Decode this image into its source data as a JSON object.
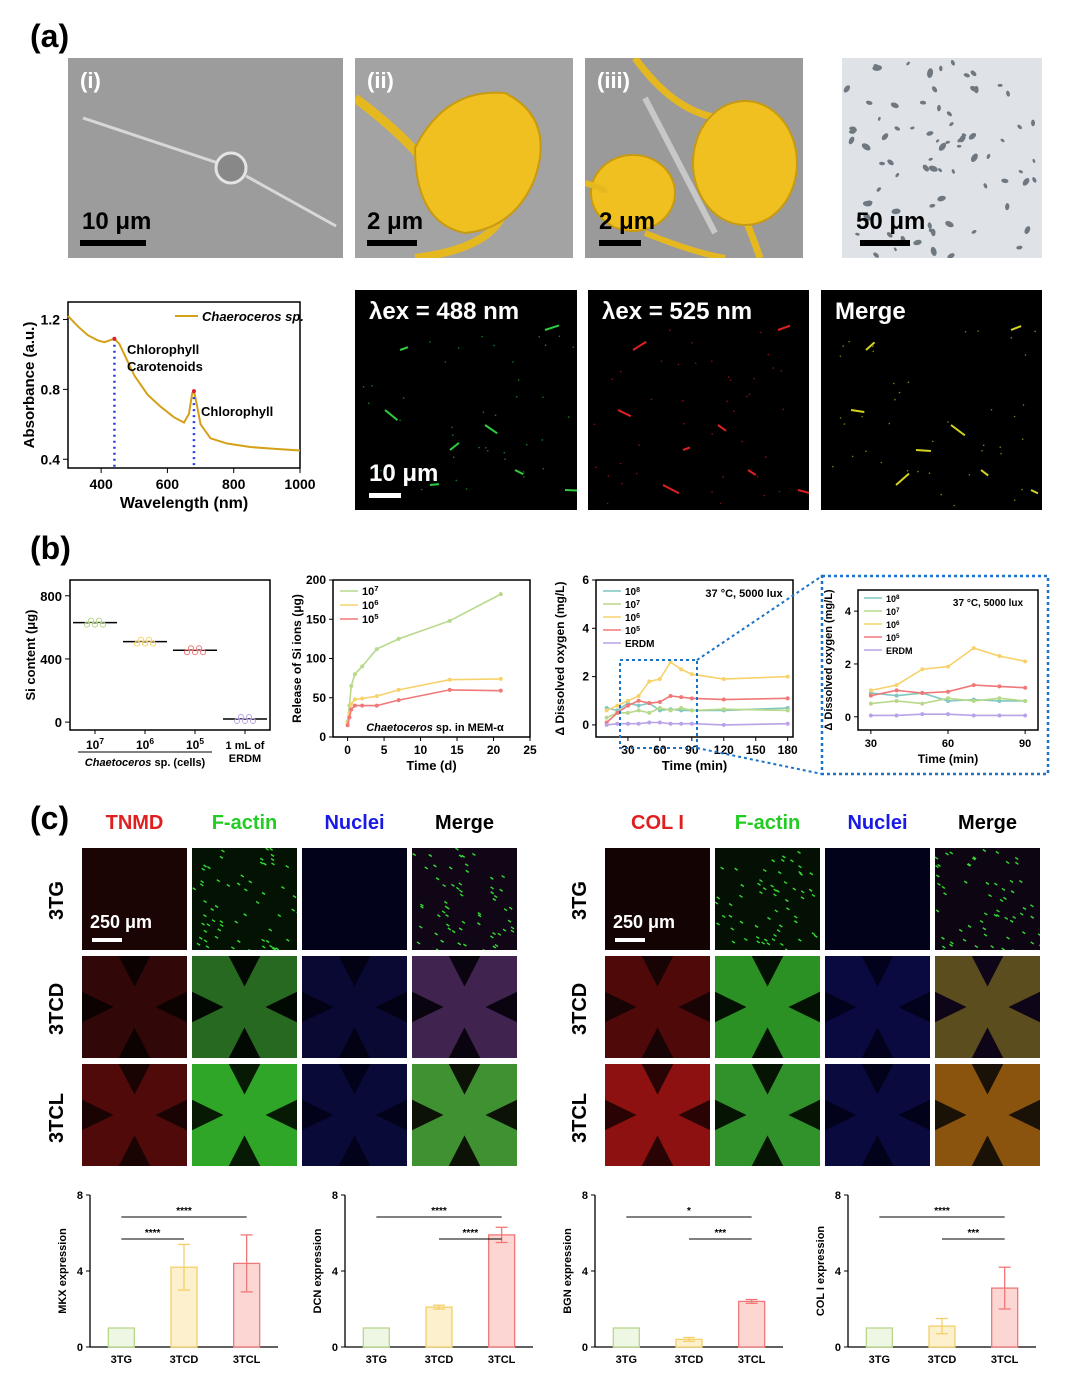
{
  "panels": {
    "a": "(a)",
    "b": "(b)",
    "c": "(c)"
  },
  "sem": {
    "labels": [
      "(i)",
      "(ii)",
      "(iii)"
    ],
    "scalebars": [
      "10 μm",
      "2 μm",
      "2 μm",
      "50 μm"
    ]
  },
  "fluor": {
    "t1": "λex = 488 nm",
    "t2": "λex = 525 nm",
    "t3": "Merge",
    "scalebar": "10 μm"
  },
  "stain_left": {
    "headers": [
      "TNMD",
      "F-actin",
      "Nuclei",
      "Merge"
    ],
    "header_colors": [
      "#e02020",
      "#22cc22",
      "#1a1ae6",
      "#000000"
    ],
    "rows": [
      "3TG",
      "3TCD",
      "3TCL"
    ],
    "scalebar": "250 μm"
  },
  "stain_right": {
    "headers": [
      "COL I",
      "F-actin",
      "Nuclei",
      "Merge"
    ],
    "header_colors": [
      "#e02020",
      "#22cc22",
      "#1a1ae6",
      "#000000"
    ],
    "rows": [
      "3TG",
      "3TCD",
      "3TCL"
    ],
    "scalebar": "250 μm"
  },
  "chart_data": [
    {
      "id": "absorb",
      "type": "line",
      "xlabel": "Wavelength (nm)",
      "ylabel": "Absorbance (a.u.)",
      "xlim": [
        300,
        1000
      ],
      "ylim": [
        0.35,
        1.3
      ],
      "xticks": [
        400,
        600,
        800,
        1000
      ],
      "yticks": [
        0.4,
        0.8,
        1.2
      ],
      "series": [
        {
          "name": "Chaeroceros sp.",
          "color": "#d4a017",
          "x": [
            300,
            330,
            360,
            390,
            410,
            425,
            440,
            455,
            470,
            500,
            540,
            580,
            620,
            650,
            665,
            675,
            680,
            690,
            700,
            730,
            780,
            850,
            920,
            1000
          ],
          "y": [
            1.22,
            1.16,
            1.11,
            1.08,
            1.07,
            1.08,
            1.09,
            1.06,
            1.0,
            0.88,
            0.77,
            0.7,
            0.64,
            0.61,
            0.66,
            0.78,
            0.79,
            0.7,
            0.6,
            0.52,
            0.49,
            0.47,
            0.46,
            0.45
          ]
        }
      ],
      "annotations": [
        {
          "text": "Chlorophyll",
          "x": 440
        },
        {
          "text": "Carotenoids",
          "x": 440
        },
        {
          "text": "Chlorophyll",
          "x": 680
        }
      ],
      "peaks_x": [
        440,
        680
      ]
    },
    {
      "id": "si",
      "type": "scatter",
      "ylabel": "Si content (μg)",
      "xlabel": "Chaetoceros sp. (cells)",
      "categories": [
        "10^7",
        "10^6",
        "10^5",
        "1 mL of ERDM"
      ],
      "category_lines": [
        "",
        "",
        "",
        "ERDM"
      ],
      "values": [
        630,
        510,
        455,
        20
      ],
      "ylim": [
        -50,
        900
      ],
      "yticks": [
        0,
        400,
        800
      ],
      "colors": [
        "#b8d88a",
        "#f7d26b",
        "#f07878",
        "#b9a3e6"
      ]
    },
    {
      "id": "release",
      "type": "line",
      "xlabel": "Time (d)",
      "ylabel": "Release of Si ions (μg)",
      "annotation": "Chaetoceros sp. in MEM-α",
      "xlim": [
        -2,
        25
      ],
      "ylim": [
        0,
        200
      ],
      "xticks": [
        0,
        5,
        10,
        15,
        20,
        25
      ],
      "yticks": [
        0,
        50,
        100,
        150,
        200
      ],
      "series": [
        {
          "name": "10^7",
          "color": "#b8d88a",
          "x": [
            0,
            0.25,
            0.5,
            1,
            2,
            4,
            7,
            14,
            21
          ],
          "y": [
            20,
            40,
            65,
            80,
            90,
            112,
            125,
            148,
            182
          ]
        },
        {
          "name": "10^6",
          "color": "#f7d26b",
          "x": [
            0,
            0.25,
            0.5,
            1,
            2,
            4,
            7,
            14,
            21
          ],
          "y": [
            18,
            30,
            42,
            48,
            49,
            52,
            60,
            73,
            74
          ]
        },
        {
          "name": "10^5",
          "color": "#f07878",
          "x": [
            0,
            0.25,
            0.5,
            1,
            2,
            4,
            7,
            14,
            21
          ],
          "y": [
            15,
            25,
            35,
            40,
            40,
            40,
            47,
            60,
            59
          ]
        }
      ]
    },
    {
      "id": "oxygen",
      "type": "line",
      "xlabel": "Time (min)",
      "ylabel": "Δ Dissolved oxygen (mg/L)",
      "annotation": "37 °C, 5000 lux",
      "xlim": [
        0,
        185
      ],
      "ylim": [
        -0.5,
        6
      ],
      "xticks": [
        30,
        60,
        90,
        120,
        150,
        180
      ],
      "yticks": [
        0,
        2,
        4,
        6
      ],
      "series": [
        {
          "name": "10^8",
          "color": "#7fc7c0",
          "x": [
            10,
            20,
            30,
            40,
            50,
            60,
            70,
            80,
            90,
            120,
            180
          ],
          "y": [
            0.7,
            0.6,
            0.9,
            0.8,
            0.9,
            0.6,
            0.65,
            0.6,
            0.6,
            0.6,
            0.7
          ]
        },
        {
          "name": "10^7",
          "color": "#b8d88a",
          "x": [
            10,
            20,
            30,
            40,
            50,
            60,
            70,
            80,
            90,
            120,
            180
          ],
          "y": [
            0.3,
            0.5,
            0.5,
            0.6,
            0.5,
            0.7,
            0.6,
            0.7,
            0.6,
            0.65,
            0.6
          ]
        },
        {
          "name": "10^6",
          "color": "#f7d26b",
          "x": [
            10,
            20,
            30,
            40,
            50,
            60,
            70,
            80,
            90,
            120,
            180
          ],
          "y": [
            0.6,
            0.8,
            1.0,
            1.2,
            1.8,
            1.9,
            2.6,
            2.3,
            2.1,
            1.9,
            2.0
          ]
        },
        {
          "name": "10^5",
          "color": "#f07878",
          "x": [
            10,
            20,
            30,
            40,
            50,
            60,
            70,
            80,
            90,
            120,
            180
          ],
          "y": [
            0.1,
            0.5,
            0.8,
            1.0,
            0.9,
            0.95,
            1.2,
            1.15,
            1.1,
            1.05,
            1.1
          ]
        },
        {
          "name": "ERDM",
          "color": "#b9a3e6",
          "x": [
            10,
            20,
            30,
            40,
            50,
            60,
            70,
            80,
            90,
            120,
            180
          ],
          "y": [
            0,
            0.05,
            0.05,
            0.05,
            0.1,
            0.1,
            0.05,
            0.05,
            0.05,
            0.0,
            0.05
          ]
        }
      ]
    },
    {
      "id": "oxygen_zoom",
      "type": "line",
      "xlabel": "Time (min)",
      "ylabel": "Δ Dissolved oxygen (mg/L)",
      "annotation": "37 °C, 5000 lux",
      "xlim": [
        25,
        95
      ],
      "ylim": [
        -0.5,
        4.8
      ],
      "xticks": [
        30,
        60,
        90
      ],
      "yticks": [
        0,
        2,
        4
      ],
      "series": [
        {
          "name": "10^8",
          "color": "#7fc7c0",
          "x": [
            30,
            40,
            50,
            60,
            70,
            80,
            90
          ],
          "y": [
            0.9,
            0.8,
            0.9,
            0.6,
            0.65,
            0.6,
            0.6
          ]
        },
        {
          "name": "10^7",
          "color": "#b8d88a",
          "x": [
            30,
            40,
            50,
            60,
            70,
            80,
            90
          ],
          "y": [
            0.5,
            0.6,
            0.5,
            0.7,
            0.6,
            0.7,
            0.6
          ]
        },
        {
          "name": "10^6",
          "color": "#f7d26b",
          "x": [
            30,
            40,
            50,
            60,
            70,
            80,
            90
          ],
          "y": [
            1.0,
            1.2,
            1.8,
            1.9,
            2.6,
            2.3,
            2.1
          ]
        },
        {
          "name": "10^5",
          "color": "#f07878",
          "x": [
            30,
            40,
            50,
            60,
            70,
            80,
            90
          ],
          "y": [
            0.8,
            1.0,
            0.9,
            0.95,
            1.2,
            1.15,
            1.1
          ]
        },
        {
          "name": "ERDM",
          "color": "#b9a3e6",
          "x": [
            30,
            40,
            50,
            60,
            70,
            80,
            90
          ],
          "y": [
            0.05,
            0.05,
            0.1,
            0.1,
            0.05,
            0.05,
            0.05
          ]
        }
      ]
    },
    {
      "id": "mkx",
      "type": "bar",
      "ylabel": "MKX expression",
      "categories": [
        "3TG",
        "3TCD",
        "3TCL"
      ],
      "values": [
        1.0,
        4.2,
        4.4
      ],
      "errors": [
        0.0,
        1.2,
        1.5
      ],
      "ylim": [
        0,
        8
      ],
      "yticks": [
        0,
        4,
        8
      ],
      "sig": [
        {
          "from": 0,
          "to": 2,
          "label": "****"
        },
        {
          "from": 0,
          "to": 1,
          "label": "****"
        }
      ]
    },
    {
      "id": "dcn",
      "type": "bar",
      "ylabel": "DCN expression",
      "categories": [
        "3TG",
        "3TCD",
        "3TCL"
      ],
      "values": [
        1.0,
        2.1,
        5.9
      ],
      "errors": [
        0.0,
        0.1,
        0.4
      ],
      "ylim": [
        0,
        8
      ],
      "yticks": [
        0,
        4,
        8
      ],
      "sig": [
        {
          "from": 0,
          "to": 2,
          "label": "****"
        },
        {
          "from": 1,
          "to": 2,
          "label": "****"
        }
      ]
    },
    {
      "id": "bgn",
      "type": "bar",
      "ylabel": "BGN expression",
      "categories": [
        "3TG",
        "3TCD",
        "3TCL"
      ],
      "values": [
        1.0,
        0.4,
        2.4
      ],
      "errors": [
        0.0,
        0.1,
        0.1
      ],
      "ylim": [
        0,
        8
      ],
      "yticks": [
        0,
        4,
        8
      ],
      "sig": [
        {
          "from": 0,
          "to": 2,
          "label": "*"
        },
        {
          "from": 1,
          "to": 2,
          "label": "***"
        }
      ]
    },
    {
      "id": "col1",
      "type": "bar",
      "ylabel": "COL I expression",
      "categories": [
        "3TG",
        "3TCD",
        "3TCL"
      ],
      "values": [
        1.0,
        1.1,
        3.1
      ],
      "errors": [
        0.0,
        0.4,
        1.1
      ],
      "ylim": [
        0,
        8
      ],
      "yticks": [
        0,
        4,
        8
      ],
      "sig": [
        {
          "from": 0,
          "to": 2,
          "label": "****"
        },
        {
          "from": 1,
          "to": 2,
          "label": "***"
        }
      ]
    }
  ]
}
